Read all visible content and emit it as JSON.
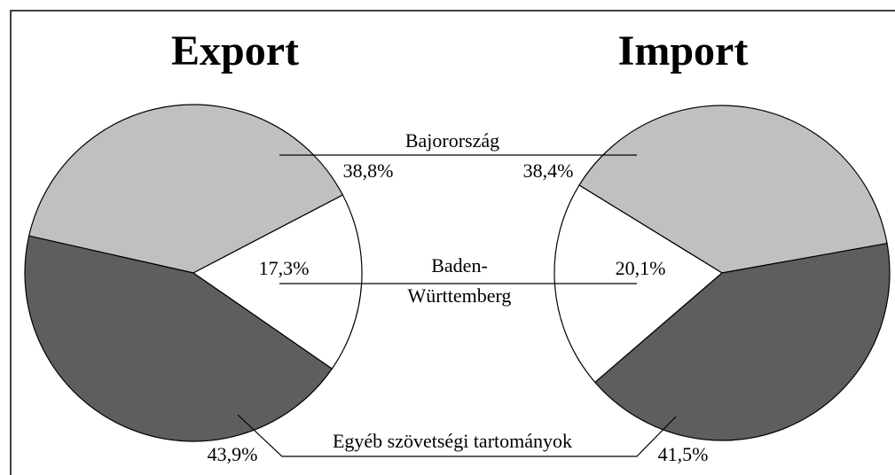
{
  "chart_data": [
    {
      "type": "pie",
      "title": "Export",
      "categories": [
        "Bajorország",
        "Baden-Württemberg",
        "Egyéb szövetségi tartományok"
      ],
      "values": [
        38.8,
        17.3,
        43.9
      ],
      "value_labels": [
        "38,8%",
        "17,3%",
        "43,9%"
      ],
      "colors": [
        "#c0c0c0",
        "#ffffff",
        "#5e5e5e"
      ]
    },
    {
      "type": "pie",
      "title": "Import",
      "values": [
        38.4,
        20.1,
        41.5
      ],
      "value_labels": [
        "38,4%",
        "20,1%",
        "41,5%"
      ],
      "colors": [
        "#c0c0c0",
        "#ffffff",
        "#5e5e5e"
      ]
    }
  ]
}
